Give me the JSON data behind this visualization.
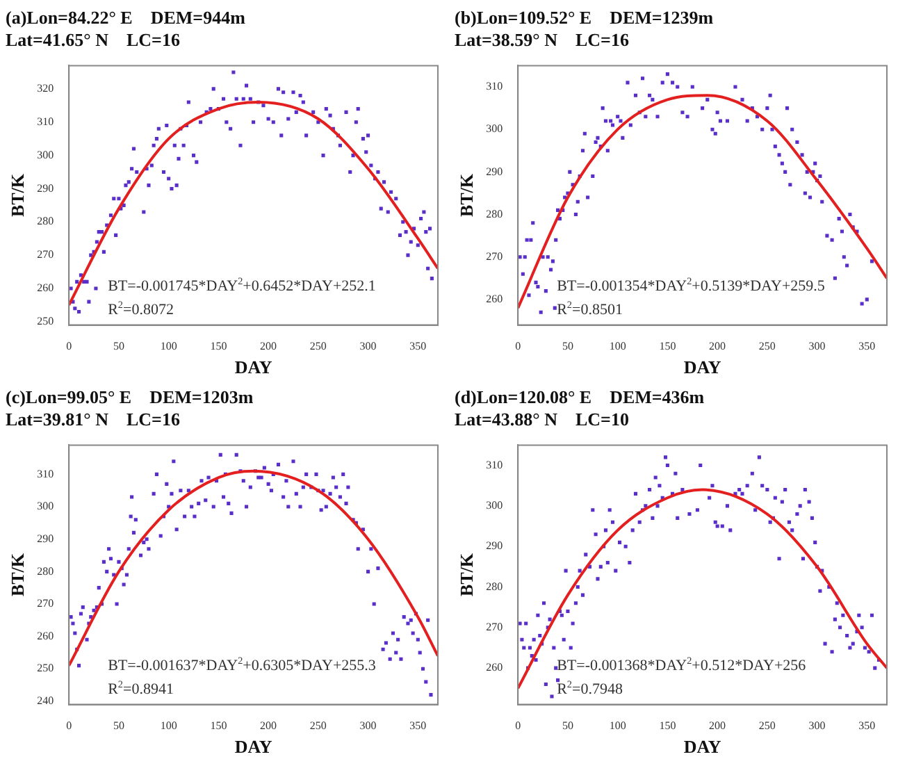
{
  "chart_data": [
    {
      "type": "scatter",
      "title": "(a)Lon=84.22° E    DEM=944m",
      "subtitle": "Lat=41.65° N    LC=16",
      "xlabel": "DAY",
      "ylabel": "BT/K",
      "xlim": [
        0,
        370
      ],
      "xticks": [
        0,
        50,
        100,
        150,
        200,
        250,
        300,
        350
      ],
      "ylim": [
        249,
        327
      ],
      "yticks": [
        250,
        260,
        270,
        280,
        290,
        300,
        310,
        320
      ],
      "grid": false,
      "legend": false,
      "annotations": [
        "BT=-0.001745*DAY$^{2}$+0.6452*DAY+252.1",
        "R$^{2}$=0.8072"
      ],
      "series": [
        {
          "type": "scatter",
          "marker": "square",
          "color": "#5a2ec8",
          "x": [
            2,
            4,
            6,
            8,
            10,
            12,
            15,
            18,
            20,
            22,
            25,
            27,
            28,
            30,
            33,
            35,
            38,
            42,
            45,
            47,
            50,
            52,
            55,
            57,
            60,
            63,
            65,
            68,
            75,
            78,
            80,
            83,
            85,
            88,
            90,
            95,
            98,
            100,
            103,
            106,
            108,
            110,
            112,
            115,
            118,
            120,
            125,
            128,
            132,
            138,
            142,
            145,
            150,
            155,
            158,
            162,
            165,
            168,
            172,
            175,
            178,
            182,
            185,
            190,
            195,
            200,
            205,
            210,
            213,
            215,
            220,
            225,
            228,
            232,
            235,
            238,
            245,
            250,
            255,
            258,
            262,
            265,
            270,
            272,
            278,
            282,
            285,
            288,
            290,
            295,
            298,
            300,
            303,
            307,
            310,
            313,
            316,
            320,
            323,
            328,
            332,
            335,
            338,
            340,
            343,
            346,
            350,
            353,
            356,
            358,
            360,
            362,
            364
          ],
          "values": [
            260,
            256,
            254,
            262,
            253,
            264,
            262,
            262,
            256,
            270,
            271,
            260,
            274,
            277,
            277,
            271,
            279,
            282,
            287,
            276,
            287,
            284,
            285,
            291,
            292,
            296,
            302,
            295,
            283,
            296,
            291,
            297,
            303,
            305,
            308,
            295,
            309,
            293,
            290,
            303,
            291,
            299,
            308,
            303,
            309,
            316,
            300,
            298,
            310,
            313,
            314,
            320,
            314,
            317,
            310,
            308,
            325,
            317,
            303,
            317,
            321,
            317,
            310,
            316,
            315,
            311,
            310,
            320,
            306,
            319,
            311,
            319,
            313,
            318,
            316,
            306,
            313,
            310,
            300,
            314,
            312,
            308,
            306,
            303,
            313,
            295,
            300,
            310,
            314,
            305,
            301,
            306,
            297,
            293,
            295,
            284,
            292,
            283,
            289,
            287,
            276,
            280,
            277,
            270,
            274,
            278,
            273,
            281,
            283,
            277,
            266,
            278,
            263
          ]
        },
        {
          "type": "line",
          "color": "#e41f1f",
          "x": [
            0,
            50,
            100,
            150,
            190,
            250,
            300,
            350,
            370
          ],
          "values": [
            255,
            284,
            305,
            314,
            316,
            311,
            296,
            275,
            266
          ]
        }
      ]
    },
    {
      "type": "scatter",
      "title": "(b)Lon=109.52° E    DEM=1239m",
      "subtitle": "Lat=38.59° N    LC=16",
      "xlabel": "DAY",
      "ylabel": "BT/K",
      "xlim": [
        0,
        370
      ],
      "xticks": [
        0,
        50,
        100,
        150,
        200,
        250,
        300,
        350
      ],
      "ylim": [
        254,
        315
      ],
      "yticks": [
        260,
        270,
        280,
        290,
        300,
        310
      ],
      "grid": false,
      "legend": false,
      "annotations": [
        "BT=-0.001354*DAY$^{2}$+0.5139*DAY+259.5",
        "R$^{2}$=0.8501"
      ],
      "series": [
        {
          "type": "scatter",
          "marker": "square",
          "color": "#5a2ec8",
          "x": [
            2,
            5,
            7,
            9,
            11,
            13,
            15,
            18,
            20,
            23,
            25,
            28,
            30,
            33,
            35,
            37,
            38,
            40,
            42,
            45,
            47,
            50,
            52,
            55,
            58,
            60,
            62,
            65,
            67,
            70,
            75,
            78,
            80,
            83,
            85,
            88,
            90,
            93,
            95,
            100,
            103,
            105,
            110,
            113,
            118,
            122,
            125,
            128,
            132,
            135,
            140,
            145,
            150,
            155,
            160,
            165,
            170,
            175,
            185,
            190,
            195,
            198,
            200,
            203,
            210,
            218,
            225,
            230,
            235,
            240,
            245,
            250,
            253,
            255,
            258,
            262,
            265,
            268,
            270,
            273,
            275,
            280,
            285,
            288,
            290,
            293,
            296,
            298,
            300,
            303,
            305,
            310,
            315,
            318,
            322,
            325,
            327,
            330,
            333,
            336,
            340,
            345,
            350,
            355
          ],
          "values": [
            270,
            266,
            270,
            274,
            261,
            274,
            278,
            264,
            263,
            257,
            270,
            262,
            270,
            267,
            269,
            258,
            274,
            281,
            279,
            281,
            284,
            285,
            290,
            287,
            280,
            283,
            289,
            295,
            299,
            284,
            289,
            297,
            298,
            296,
            305,
            302,
            295,
            302,
            301,
            303,
            302,
            298,
            311,
            301,
            308,
            304,
            312,
            303,
            308,
            307,
            303,
            311,
            313,
            311,
            310,
            304,
            303,
            310,
            305,
            307,
            300,
            299,
            304,
            302,
            302,
            310,
            307,
            302,
            305,
            303,
            300,
            305,
            308,
            300,
            296,
            294,
            292,
            290,
            305,
            287,
            300,
            297,
            294,
            285,
            290,
            284,
            290,
            292,
            288,
            289,
            283,
            275,
            274,
            265,
            279,
            276,
            270,
            268,
            280,
            277,
            276,
            259,
            260,
            269
          ]
        },
        {
          "type": "line",
          "color": "#e41f1f",
          "x": [
            0,
            50,
            100,
            150,
            190,
            250,
            300,
            350,
            370
          ],
          "values": [
            258,
            284,
            300,
            307,
            308,
            302,
            288,
            272,
            265
          ]
        }
      ]
    },
    {
      "type": "scatter",
      "title": "(c)Lon=99.05° E    DEM=1203m",
      "subtitle": "Lat=39.81° N    LC=16",
      "xlabel": "DAY",
      "ylabel": "BT/K",
      "xlim": [
        0,
        370
      ],
      "xticks": [
        0,
        50,
        100,
        150,
        200,
        250,
        300,
        350
      ],
      "ylim": [
        239,
        319
      ],
      "yticks": [
        240,
        250,
        260,
        270,
        280,
        290,
        300,
        310
      ],
      "grid": false,
      "legend": false,
      "annotations": [
        "BT=-0.001637*DAY$^{2}$+0.6305*DAY+255.3",
        "R$^{2}$=0.8941"
      ],
      "series": [
        {
          "type": "scatter",
          "marker": "square",
          "color": "#5a2ec8",
          "x": [
            2,
            4,
            6,
            8,
            10,
            12,
            14,
            18,
            20,
            22,
            25,
            28,
            30,
            33,
            35,
            38,
            40,
            42,
            45,
            48,
            50,
            53,
            55,
            58,
            60,
            62,
            63,
            65,
            67,
            72,
            75,
            78,
            80,
            85,
            88,
            92,
            95,
            98,
            100,
            103,
            105,
            108,
            112,
            116,
            120,
            123,
            126,
            130,
            133,
            137,
            140,
            145,
            148,
            152,
            155,
            157,
            160,
            163,
            168,
            172,
            175,
            178,
            182,
            187,
            190,
            193,
            196,
            200,
            203,
            205,
            210,
            215,
            218,
            220,
            225,
            228,
            232,
            235,
            238,
            243,
            248,
            250,
            253,
            255,
            258,
            262,
            265,
            268,
            272,
            275,
            278,
            280,
            285,
            288,
            290,
            295,
            300,
            303,
            306,
            310,
            315,
            318,
            322,
            325,
            328,
            330,
            333,
            336,
            340,
            343,
            345,
            348,
            350,
            352,
            355,
            358,
            360,
            363
          ],
          "values": [
            266,
            264,
            261,
            256,
            251,
            267,
            269,
            259,
            264,
            266,
            268,
            269,
            275,
            270,
            283,
            280,
            287,
            284,
            279,
            270,
            283,
            281,
            276,
            279,
            287,
            297,
            303,
            292,
            296,
            285,
            289,
            290,
            287,
            304,
            310,
            291,
            297,
            307,
            300,
            304,
            314,
            293,
            305,
            297,
            305,
            300,
            297,
            301,
            308,
            302,
            309,
            300,
            308,
            316,
            303,
            310,
            301,
            298,
            316,
            311,
            308,
            300,
            306,
            311,
            309,
            309,
            312,
            307,
            305,
            310,
            313,
            303,
            308,
            300,
            314,
            304,
            300,
            306,
            310,
            306,
            310,
            305,
            299,
            305,
            300,
            304,
            309,
            306,
            303,
            310,
            301,
            306,
            296,
            295,
            287,
            293,
            280,
            287,
            270,
            281,
            256,
            258,
            253,
            261,
            255,
            259,
            253,
            266,
            264,
            265,
            261,
            267,
            259,
            255,
            250,
            246,
            265,
            242
          ]
        },
        {
          "type": "line",
          "color": "#e41f1f",
          "x": [
            0,
            50,
            100,
            150,
            185,
            250,
            300,
            350,
            370
          ],
          "values": [
            251,
            280,
            299,
            309,
            311,
            305,
            290,
            266,
            254
          ]
        }
      ]
    },
    {
      "type": "scatter",
      "title": "(d)Lon=120.08° E    DEM=436m",
      "subtitle": "Lat=43.88° N    LC=10",
      "xlabel": "DAY",
      "ylabel": "BT/K",
      "xlim": [
        0,
        370
      ],
      "xticks": [
        0,
        50,
        100,
        150,
        200,
        250,
        300,
        350
      ],
      "ylim": [
        251,
        315
      ],
      "yticks": [
        260,
        270,
        280,
        290,
        300,
        310
      ],
      "grid": false,
      "legend": false,
      "annotations": [
        "BT=-0.001368*DAY$^{2}$+0.512*DAY+256",
        "R$^{2}$=0.7948"
      ],
      "series": [
        {
          "type": "scatter",
          "marker": "square",
          "color": "#5a2ec8",
          "x": [
            2,
            4,
            6,
            8,
            10,
            12,
            14,
            16,
            18,
            20,
            22,
            24,
            26,
            28,
            30,
            32,
            34,
            36,
            38,
            40,
            42,
            44,
            46,
            48,
            50,
            53,
            55,
            58,
            60,
            62,
            65,
            68,
            72,
            75,
            78,
            80,
            83,
            86,
            88,
            90,
            92,
            95,
            98,
            102,
            108,
            112,
            115,
            118,
            122,
            125,
            128,
            132,
            135,
            138,
            140,
            142,
            145,
            148,
            150,
            155,
            158,
            160,
            165,
            172,
            180,
            183,
            192,
            195,
            198,
            200,
            205,
            210,
            213,
            218,
            222,
            225,
            230,
            235,
            238,
            242,
            245,
            250,
            253,
            256,
            258,
            262,
            265,
            268,
            272,
            275,
            280,
            283,
            286,
            288,
            292,
            295,
            298,
            300,
            303,
            305,
            308,
            312,
            315,
            318,
            320,
            323,
            326,
            330,
            333,
            336,
            340,
            342,
            345,
            348,
            352,
            355,
            358,
            362
          ],
          "values": [
            271,
            267,
            265,
            271,
            260,
            265,
            263,
            267,
            262,
            273,
            268,
            266,
            276,
            256,
            270,
            272,
            253,
            265,
            260,
            257,
            274,
            273,
            267,
            284,
            274,
            265,
            271,
            276,
            280,
            284,
            278,
            288,
            285,
            299,
            293,
            282,
            285,
            290,
            294,
            286,
            299,
            296,
            284,
            291,
            290,
            286,
            294,
            303,
            296,
            299,
            300,
            304,
            297,
            307,
            300,
            305,
            302,
            312,
            310,
            303,
            308,
            297,
            304,
            298,
            299,
            310,
            302,
            305,
            296,
            295,
            295,
            300,
            294,
            303,
            304,
            303,
            305,
            308,
            299,
            312,
            305,
            304,
            296,
            297,
            302,
            287,
            301,
            304,
            296,
            294,
            298,
            300,
            287,
            304,
            301,
            297,
            291,
            285,
            279,
            284,
            266,
            280,
            264,
            272,
            276,
            270,
            273,
            268,
            265,
            266,
            269,
            273,
            270,
            265,
            264,
            273,
            260,
            262
          ]
        },
        {
          "type": "line",
          "color": "#e41f1f",
          "x": [
            0,
            50,
            100,
            150,
            185,
            250,
            300,
            350,
            370
          ],
          "values": [
            255,
            278,
            294,
            302,
            304,
            298,
            285,
            266,
            260
          ]
        }
      ]
    }
  ]
}
